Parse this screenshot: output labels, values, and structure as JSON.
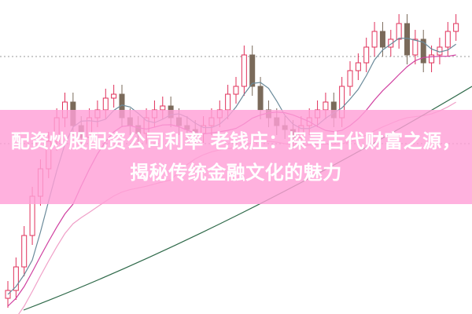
{
  "article": {
    "title": "配资炒股配资公司利率 老钱庄：探寻古代财富之源，揭秘传统金融文化的魅力"
  },
  "colors": {
    "banner": "#ffa0d7",
    "candle_up": "#e0305a",
    "candle_down": "#7a6a5a",
    "ma_short": "#6a8a9a",
    "ma_mid": "#d040a0",
    "ma_long": "#2f6a4a",
    "ma_pink": "#f0a0c8"
  }
}
